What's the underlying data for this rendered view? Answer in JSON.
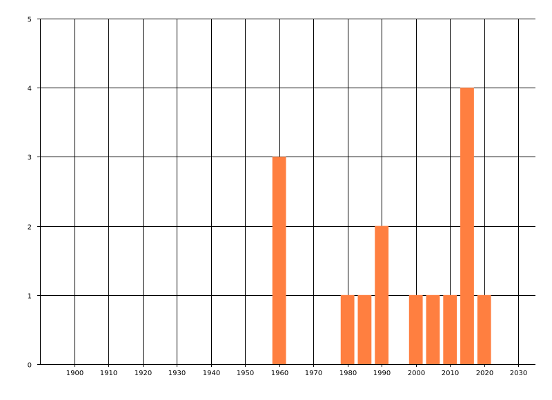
{
  "chart_data": {
    "type": "bar",
    "title": "",
    "xlabel": "",
    "ylabel": "",
    "xlim": [
      1890,
      2035
    ],
    "ylim": [
      0,
      5
    ],
    "grid": true,
    "bar_color": "#FF7F40",
    "x_ticks": [
      "1900",
      "1910",
      "1920",
      "1930",
      "1940",
      "1950",
      "1960",
      "1970",
      "1980",
      "1990",
      "2000",
      "2010",
      "2020",
      "2030"
    ],
    "y_ticks": [
      "0",
      "1",
      "2",
      "3",
      "4",
      "5"
    ],
    "bar_width_years": 4,
    "x": [
      1960,
      1980,
      1985,
      1990,
      2000,
      2005,
      2010,
      2015,
      2020
    ],
    "values": [
      3,
      1,
      1,
      2,
      1,
      1,
      1,
      4,
      1
    ]
  }
}
